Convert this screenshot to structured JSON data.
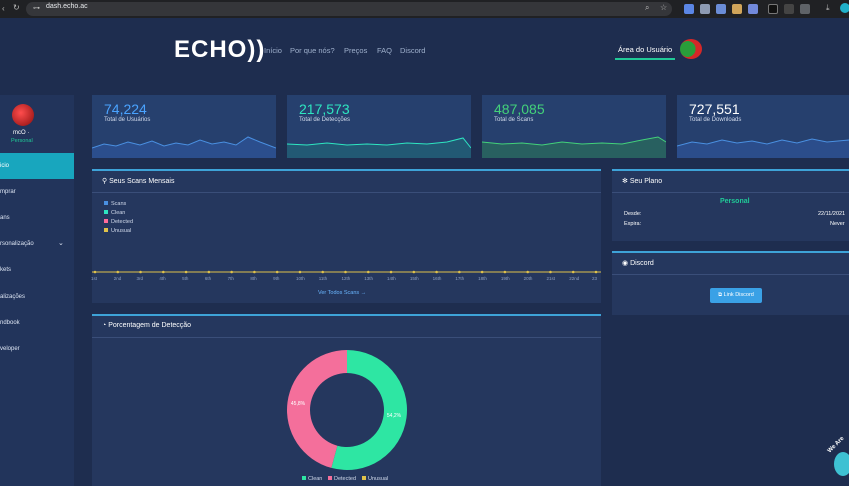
{
  "browser": {
    "url": "dash.echo.ac"
  },
  "site": {
    "logo": "ECHO))",
    "nav": [
      "Início",
      "Por que nós?",
      "Preços",
      "FAQ",
      "Discord"
    ],
    "user_area": "Área do Usuário"
  },
  "sidebar": {
    "user_name": "mcO ·",
    "user_plan": "Personal",
    "items": [
      {
        "label": "icio",
        "active": true
      },
      {
        "label": "mprar"
      },
      {
        "label": "ans"
      },
      {
        "label": "rsonalização"
      },
      {
        "label": "kets"
      },
      {
        "label": "alizações"
      },
      {
        "label": "ndbook"
      },
      {
        "label": "veloper"
      }
    ]
  },
  "stats": [
    {
      "value": "74,224",
      "label": "Total de Usuários",
      "color": "#4aa3ff"
    },
    {
      "value": "217,573",
      "label": "Total de Detecções",
      "color": "#2ee6c1"
    },
    {
      "value": "487,085",
      "label": "Total de Scans",
      "color": "#43d17a"
    },
    {
      "value": "727,551",
      "label": "Total de Downloads",
      "color": "#ffffff"
    }
  ],
  "scans_panel": {
    "title": "Seus Scans Mensais",
    "legend": [
      {
        "label": "Scans",
        "color": "#4a90e2"
      },
      {
        "label": "Clean",
        "color": "#2ee6c1"
      },
      {
        "label": "Detected",
        "color": "#ff6b9a"
      },
      {
        "label": "Unusual",
        "color": "#e0c24a"
      }
    ],
    "x_ticks": [
      "1st",
      "2nd",
      "3rd",
      "4th",
      "5th",
      "6th",
      "7th",
      "8th",
      "9th",
      "10th",
      "11th",
      "12th",
      "13th",
      "14th",
      "15th",
      "16th",
      "17th",
      "18th",
      "19th",
      "20th",
      "21st",
      "22nd",
      "23"
    ],
    "link": "Ver Todos Scans →"
  },
  "detection_panel": {
    "title": "Porcentagem de Detecção",
    "clean_label": "54,2%",
    "detected_label": "45,8%",
    "legend": [
      "Clean",
      "Detected",
      "Unusual"
    ]
  },
  "chart_data": {
    "type": "pie",
    "categories": [
      "Clean",
      "Detected",
      "Unusual"
    ],
    "values": [
      54.2,
      45.8,
      0
    ],
    "colors": [
      "#2ee6a3",
      "#f46f9b",
      "#e0c24a"
    ]
  },
  "plan_panel": {
    "title": "Seu Plano",
    "plan": "Personal",
    "since_label": "Desde:",
    "since_value": "22/11/2021",
    "expires_label": "Expira:",
    "expires_value": "Never"
  },
  "discord_panel": {
    "title": "Discord",
    "button": "Link Discord"
  },
  "chat_widget": "We Are"
}
